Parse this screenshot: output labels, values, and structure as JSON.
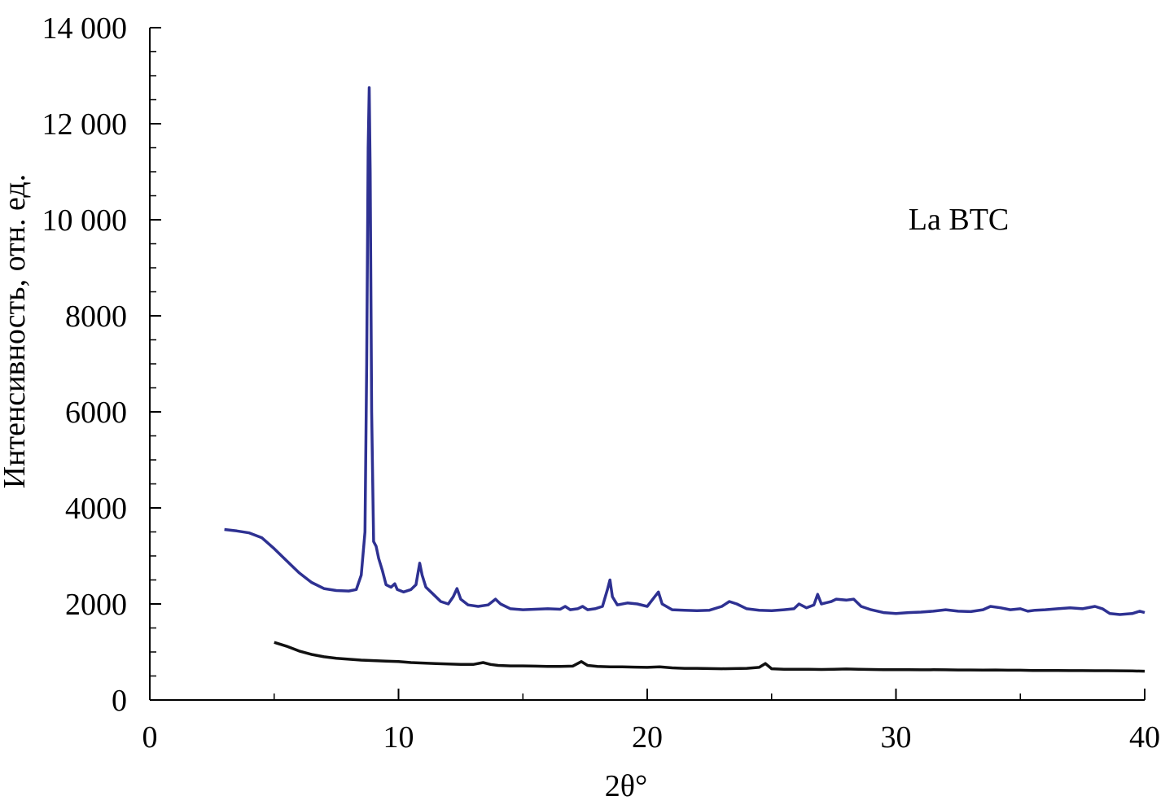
{
  "chart_data": {
    "type": "line",
    "title": "",
    "xlabel": "2θ°",
    "ylabel": "Интенсивность, отн. ед.",
    "xlim": [
      0,
      40
    ],
    "ylim": [
      0,
      14000
    ],
    "x_ticks": [
      {
        "value": 0,
        "label": "0"
      },
      {
        "value": 10,
        "label": "10"
      },
      {
        "value": 20,
        "label": "20"
      },
      {
        "value": 30,
        "label": "30"
      },
      {
        "value": 40,
        "label": "40"
      }
    ],
    "y_ticks": [
      {
        "value": 0,
        "label": "0"
      },
      {
        "value": 2000,
        "label": "2000"
      },
      {
        "value": 4000,
        "label": "4000"
      },
      {
        "value": 6000,
        "label": "6000"
      },
      {
        "value": 8000,
        "label": "8000"
      },
      {
        "value": 10000,
        "label": "10 000"
      },
      {
        "value": 12000,
        "label": "12 000"
      },
      {
        "value": 14000,
        "label": "14 000"
      }
    ],
    "grid": false,
    "annotations": [
      {
        "text": "La BTC",
        "x": 30.5,
        "y": 9800
      }
    ],
    "series": [
      {
        "color": "#2e3192",
        "points": [
          [
            3.0,
            3550
          ],
          [
            3.5,
            3520
          ],
          [
            4.0,
            3480
          ],
          [
            4.5,
            3380
          ],
          [
            5.0,
            3150
          ],
          [
            5.5,
            2900
          ],
          [
            6.0,
            2650
          ],
          [
            6.5,
            2450
          ],
          [
            7.0,
            2320
          ],
          [
            7.5,
            2280
          ],
          [
            8.0,
            2270
          ],
          [
            8.3,
            2300
          ],
          [
            8.5,
            2600
          ],
          [
            8.65,
            3500
          ],
          [
            8.72,
            7000
          ],
          [
            8.78,
            11500
          ],
          [
            8.82,
            12750
          ],
          [
            8.86,
            11000
          ],
          [
            8.92,
            6000
          ],
          [
            9.0,
            3300
          ],
          [
            9.1,
            3200
          ],
          [
            9.2,
            2950
          ],
          [
            9.35,
            2700
          ],
          [
            9.5,
            2400
          ],
          [
            9.7,
            2350
          ],
          [
            9.85,
            2420
          ],
          [
            9.95,
            2300
          ],
          [
            10.2,
            2250
          ],
          [
            10.5,
            2300
          ],
          [
            10.7,
            2400
          ],
          [
            10.85,
            2850
          ],
          [
            10.95,
            2600
          ],
          [
            11.1,
            2350
          ],
          [
            11.4,
            2200
          ],
          [
            11.7,
            2050
          ],
          [
            12.0,
            2000
          ],
          [
            12.2,
            2150
          ],
          [
            12.35,
            2320
          ],
          [
            12.5,
            2100
          ],
          [
            12.8,
            1980
          ],
          [
            13.2,
            1950
          ],
          [
            13.6,
            1980
          ],
          [
            13.9,
            2100
          ],
          [
            14.1,
            2000
          ],
          [
            14.5,
            1900
          ],
          [
            15.0,
            1880
          ],
          [
            15.5,
            1890
          ],
          [
            16.0,
            1900
          ],
          [
            16.5,
            1890
          ],
          [
            16.7,
            1950
          ],
          [
            16.9,
            1880
          ],
          [
            17.2,
            1900
          ],
          [
            17.4,
            1950
          ],
          [
            17.6,
            1880
          ],
          [
            17.9,
            1900
          ],
          [
            18.2,
            1950
          ],
          [
            18.4,
            2300
          ],
          [
            18.5,
            2500
          ],
          [
            18.6,
            2150
          ],
          [
            18.8,
            1980
          ],
          [
            19.2,
            2020
          ],
          [
            19.6,
            2000
          ],
          [
            20.0,
            1950
          ],
          [
            20.3,
            2150
          ],
          [
            20.45,
            2250
          ],
          [
            20.6,
            2000
          ],
          [
            21.0,
            1880
          ],
          [
            21.5,
            1870
          ],
          [
            22.0,
            1860
          ],
          [
            22.5,
            1870
          ],
          [
            23.0,
            1950
          ],
          [
            23.3,
            2050
          ],
          [
            23.6,
            2000
          ],
          [
            24.0,
            1900
          ],
          [
            24.5,
            1870
          ],
          [
            25.0,
            1860
          ],
          [
            25.5,
            1880
          ],
          [
            25.9,
            1900
          ],
          [
            26.1,
            2000
          ],
          [
            26.4,
            1920
          ],
          [
            26.7,
            1980
          ],
          [
            26.85,
            2200
          ],
          [
            27.0,
            2000
          ],
          [
            27.4,
            2050
          ],
          [
            27.6,
            2100
          ],
          [
            28.0,
            2080
          ],
          [
            28.3,
            2100
          ],
          [
            28.6,
            1950
          ],
          [
            29.0,
            1880
          ],
          [
            29.5,
            1820
          ],
          [
            30.0,
            1800
          ],
          [
            30.5,
            1820
          ],
          [
            31.0,
            1830
          ],
          [
            31.5,
            1850
          ],
          [
            32.0,
            1880
          ],
          [
            32.5,
            1850
          ],
          [
            33.0,
            1840
          ],
          [
            33.5,
            1880
          ],
          [
            33.8,
            1950
          ],
          [
            34.2,
            1920
          ],
          [
            34.6,
            1880
          ],
          [
            35.0,
            1900
          ],
          [
            35.3,
            1850
          ],
          [
            35.6,
            1870
          ],
          [
            36.0,
            1880
          ],
          [
            36.5,
            1900
          ],
          [
            37.0,
            1920
          ],
          [
            37.5,
            1900
          ],
          [
            38.0,
            1950
          ],
          [
            38.3,
            1900
          ],
          [
            38.6,
            1800
          ],
          [
            39.0,
            1780
          ],
          [
            39.5,
            1800
          ],
          [
            39.8,
            1850
          ],
          [
            40.0,
            1820
          ]
        ]
      },
      {
        "color": "#111111",
        "points": [
          [
            5.0,
            1200
          ],
          [
            5.5,
            1120
          ],
          [
            6.0,
            1020
          ],
          [
            6.5,
            950
          ],
          [
            7.0,
            900
          ],
          [
            7.5,
            870
          ],
          [
            8.0,
            850
          ],
          [
            8.5,
            830
          ],
          [
            9.0,
            820
          ],
          [
            9.5,
            810
          ],
          [
            10.0,
            800
          ],
          [
            10.5,
            780
          ],
          [
            11.0,
            770
          ],
          [
            11.5,
            760
          ],
          [
            12.0,
            750
          ],
          [
            12.5,
            740
          ],
          [
            13.0,
            740
          ],
          [
            13.4,
            780
          ],
          [
            13.7,
            740
          ],
          [
            14.0,
            720
          ],
          [
            14.5,
            710
          ],
          [
            15.0,
            710
          ],
          [
            15.5,
            705
          ],
          [
            16.0,
            700
          ],
          [
            16.5,
            700
          ],
          [
            17.0,
            705
          ],
          [
            17.35,
            800
          ],
          [
            17.6,
            720
          ],
          [
            18.0,
            700
          ],
          [
            18.5,
            690
          ],
          [
            19.0,
            690
          ],
          [
            19.5,
            685
          ],
          [
            20.0,
            680
          ],
          [
            20.5,
            690
          ],
          [
            21.0,
            670
          ],
          [
            21.5,
            660
          ],
          [
            22.0,
            660
          ],
          [
            22.5,
            655
          ],
          [
            23.0,
            650
          ],
          [
            23.5,
            655
          ],
          [
            24.0,
            660
          ],
          [
            24.5,
            680
          ],
          [
            24.75,
            760
          ],
          [
            25.0,
            650
          ],
          [
            25.5,
            640
          ],
          [
            26.0,
            640
          ],
          [
            26.5,
            640
          ],
          [
            27.0,
            635
          ],
          [
            27.5,
            640
          ],
          [
            28.0,
            645
          ],
          [
            28.5,
            640
          ],
          [
            29.0,
            635
          ],
          [
            29.5,
            630
          ],
          [
            30.0,
            630
          ],
          [
            30.5,
            630
          ],
          [
            31.0,
            628
          ],
          [
            31.5,
            630
          ],
          [
            32.0,
            628
          ],
          [
            32.5,
            625
          ],
          [
            33.0,
            625
          ],
          [
            33.5,
            622
          ],
          [
            34.0,
            625
          ],
          [
            34.5,
            620
          ],
          [
            35.0,
            620
          ],
          [
            35.5,
            615
          ],
          [
            36.0,
            615
          ],
          [
            36.5,
            615
          ],
          [
            37.0,
            612
          ],
          [
            37.5,
            612
          ],
          [
            38.0,
            610
          ],
          [
            38.5,
            610
          ],
          [
            39.0,
            608
          ],
          [
            39.5,
            605
          ],
          [
            40.0,
            600
          ]
        ]
      }
    ]
  }
}
